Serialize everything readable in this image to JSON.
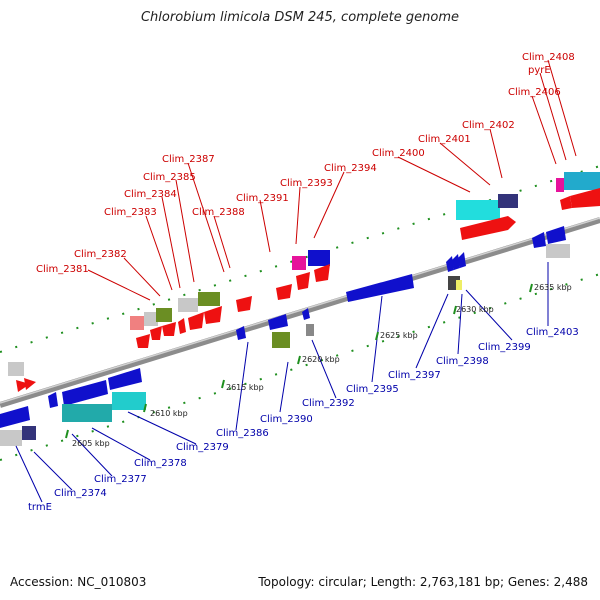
{
  "title": "Chlorobium limicola DSM 245, complete genome",
  "accession": "Accession: NC_010803",
  "summary": "Topology: circular; Length: 2,763,181 bp; Genes: 2,488",
  "colors": {
    "backbone": "#8c8c8c",
    "forward_label": "#cc0000",
    "reverse_label": "#0000aa",
    "tick": "#1f8f1f"
  },
  "ticks": [
    "2605 kbp",
    "2610 kbp",
    "2615 kbp",
    "2620 kbp",
    "2625 kbp",
    "2630 kbp",
    "2635 kbp"
  ],
  "forward_labels": [
    "Clim_2381",
    "Clim_2382",
    "Clim_2383",
    "Clim_2384",
    "Clim_2385",
    "Clim_2387",
    "Clim_2388",
    "Clim_2391",
    "Clim_2393",
    "Clim_2394",
    "Clim_2400",
    "Clim_2401",
    "Clim_2402",
    "Clim_2406",
    "pyrE",
    "Clim_2408"
  ],
  "reverse_labels": [
    "trmE",
    "Clim_2374",
    "Clim_2377",
    "Clim_2378",
    "Clim_2379",
    "Clim_2386",
    "Clim_2390",
    "Clim_2392",
    "Clim_2395",
    "Clim_2397",
    "Clim_2398",
    "Clim_2399",
    "Clim_2403"
  ]
}
